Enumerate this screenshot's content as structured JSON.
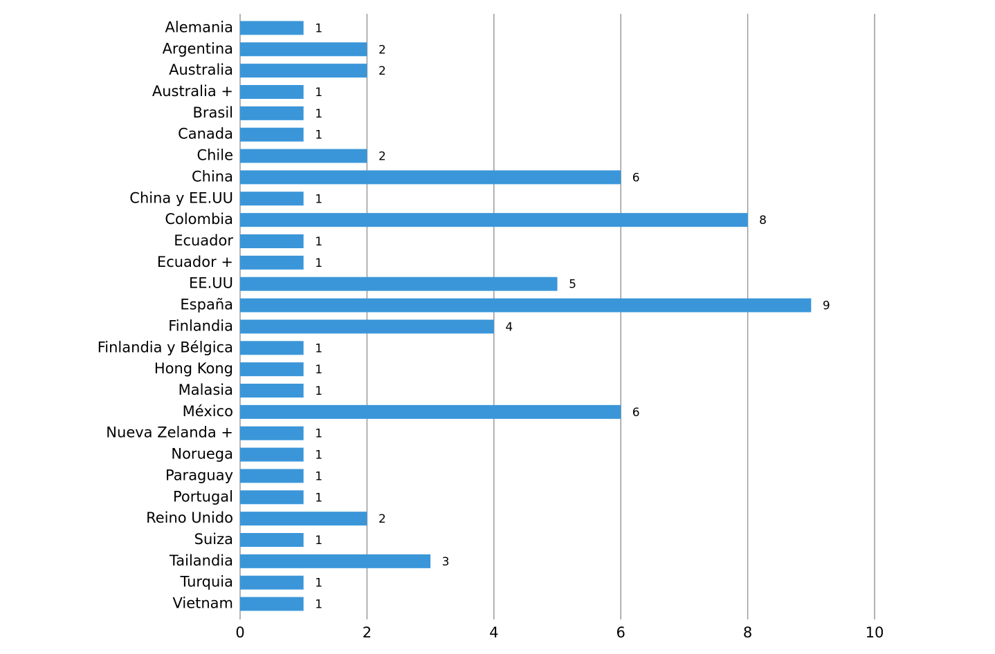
{
  "chart_data": {
    "type": "bar",
    "orientation": "horizontal",
    "categories": [
      "Alemania",
      "Argentina",
      "Australia",
      "Australia +",
      "Brasil",
      "Canada",
      "Chile",
      "China",
      "China y EE.UU",
      "Colombia",
      "Ecuador",
      "Ecuador +",
      "EE.UU",
      "España",
      "Finlandia",
      "Finlandia y Bélgica",
      "Hong Kong",
      "Malasia",
      "México",
      "Nueva Zelanda +",
      "Noruega",
      "Paraguay",
      "Portugal",
      "Reino Unido",
      "Suiza",
      "Tailandia",
      "Turquia",
      "Vietnam"
    ],
    "values": [
      1,
      2,
      2,
      1,
      1,
      1,
      2,
      6,
      1,
      8,
      1,
      1,
      5,
      9,
      4,
      1,
      1,
      1,
      6,
      1,
      1,
      1,
      1,
      2,
      1,
      3,
      1,
      1
    ],
    "color": "#3a96d8",
    "xlim": [
      0,
      10
    ],
    "xticks": [
      0,
      2,
      4,
      6,
      8,
      10
    ],
    "grid": true
  }
}
